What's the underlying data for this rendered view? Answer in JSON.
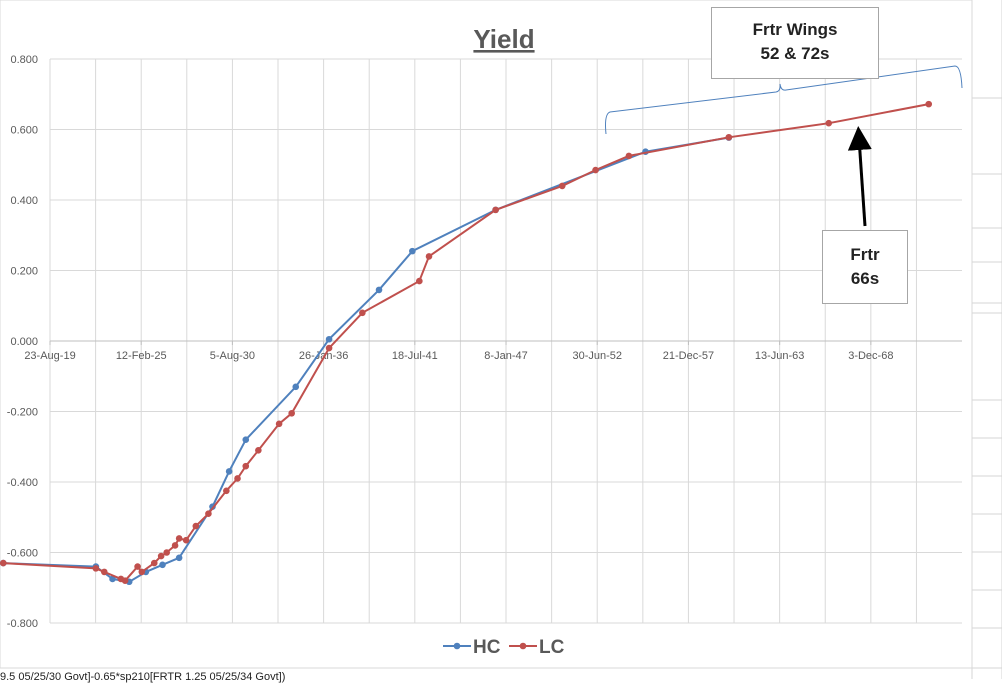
{
  "formula_bar_fragment": "9.5 05/25/30 Govt]-0.65*sp210[FRTR 1.25 05/25/34 Govt])",
  "colors": {
    "hc": "#4f81bd",
    "lc": "#c0504d",
    "brace": "#4f81bd",
    "arrow": "#000000"
  },
  "annotations": {
    "wings_line1": "Frtr Wings",
    "wings_line2": "52 & 72s",
    "frtr66_line1": "Frtr",
    "frtr66_line2": "66s"
  },
  "chart_data": {
    "type": "line",
    "title": "Yield",
    "xlabel": "",
    "ylabel": "",
    "x_ticks": [
      "23-Aug-19",
      "12-Feb-25",
      "5-Aug-30",
      "26-Jan-36",
      "18-Jul-41",
      "8-Jan-47",
      "30-Jun-52",
      "21-Dec-57",
      "13-Jun-63",
      "3-Dec-68"
    ],
    "y_ticks": [
      "0.800",
      "0.600",
      "0.400",
      "0.200",
      "0.000",
      "-0.200",
      "-0.400",
      "-0.600",
      "-0.800"
    ],
    "xlim": [
      "2019-08-23",
      "2074-05-25"
    ],
    "ylim": [
      -0.8,
      0.8
    ],
    "grid": true,
    "legend_position": "bottom",
    "series": [
      {
        "name": "HC",
        "points": [
          [
            "2016-11-01",
            -0.63
          ],
          [
            "2022-05-25",
            -0.64
          ],
          [
            "2023-05-25",
            -0.675
          ],
          [
            "2024-05-25",
            -0.683
          ],
          [
            "2025-05-25",
            -0.655
          ],
          [
            "2026-05-25",
            -0.635
          ],
          [
            "2027-05-25",
            -0.615
          ],
          [
            "2029-05-25",
            -0.47
          ],
          [
            "2030-05-25",
            -0.37
          ],
          [
            "2031-05-25",
            -0.28
          ],
          [
            "2034-05-25",
            -0.13
          ],
          [
            "2036-05-25",
            0.005
          ],
          [
            "2039-05-25",
            0.145
          ],
          [
            "2041-05-25",
            0.255
          ],
          [
            "2046-05-25",
            0.372
          ],
          [
            "2055-05-25",
            0.537
          ],
          [
            "2060-05-25",
            0.577
          ]
        ]
      },
      {
        "name": "LC",
        "points": [
          [
            "2016-11-01",
            -0.63
          ],
          [
            "2022-05-25",
            -0.645
          ],
          [
            "2022-11-25",
            -0.655
          ],
          [
            "2023-11-25",
            -0.675
          ],
          [
            "2024-02-25",
            -0.68
          ],
          [
            "2024-11-25",
            -0.64
          ],
          [
            "2025-02-25",
            -0.655
          ],
          [
            "2025-11-25",
            -0.63
          ],
          [
            "2026-04-25",
            -0.61
          ],
          [
            "2026-08-25",
            -0.6
          ],
          [
            "2027-02-25",
            -0.58
          ],
          [
            "2027-05-25",
            -0.56
          ],
          [
            "2027-10-25",
            -0.565
          ],
          [
            "2028-05-25",
            -0.525
          ],
          [
            "2029-02-25",
            -0.49
          ],
          [
            "2030-03-25",
            -0.425
          ],
          [
            "2030-11-25",
            -0.39
          ],
          [
            "2031-05-25",
            -0.355
          ],
          [
            "2032-02-25",
            -0.31
          ],
          [
            "2033-05-25",
            -0.235
          ],
          [
            "2034-02-25",
            -0.205
          ],
          [
            "2036-05-25",
            -0.02
          ],
          [
            "2038-05-25",
            0.08
          ],
          [
            "2041-10-25",
            0.17
          ],
          [
            "2042-05-25",
            0.24
          ],
          [
            "2046-05-25",
            0.372
          ],
          [
            "2050-05-25",
            0.44
          ],
          [
            "2052-05-25",
            0.485
          ],
          [
            "2054-05-25",
            0.525
          ],
          [
            "2060-05-25",
            0.578
          ],
          [
            "2066-05-25",
            0.618
          ],
          [
            "2072-05-25",
            0.672
          ]
        ]
      }
    ]
  }
}
